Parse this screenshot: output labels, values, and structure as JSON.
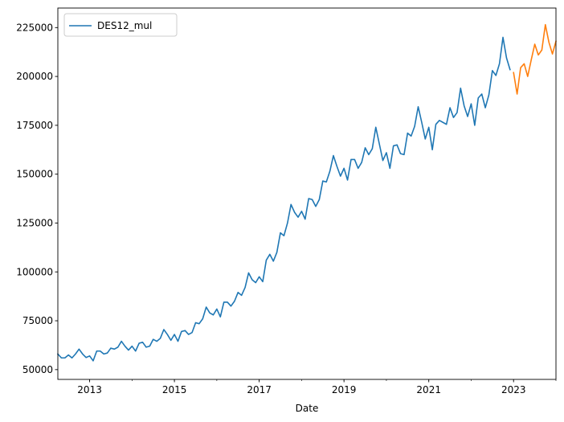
{
  "chart_data": {
    "type": "line",
    "title": "",
    "xlabel": "Date",
    "ylabel": "",
    "xlim": [
      "2012-04",
      "2024-01"
    ],
    "ylim": [
      45000,
      235000
    ],
    "grid": false,
    "legend_placement": "top-left",
    "x_ticks": [
      "2013",
      "2015",
      "2017",
      "2019",
      "2021",
      "2023"
    ],
    "y_ticks": [
      "50000",
      "75000",
      "100000",
      "125000",
      "150000",
      "175000",
      "200000",
      "225000"
    ],
    "series": [
      {
        "name": "DES12_mul",
        "color": "#1f77b4",
        "x": [
          "2012-04",
          "2012-05",
          "2012-06",
          "2012-07",
          "2012-08",
          "2012-09",
          "2012-10",
          "2012-11",
          "2012-12",
          "2013-01",
          "2013-02",
          "2013-03",
          "2013-04",
          "2013-05",
          "2013-06",
          "2013-07",
          "2013-08",
          "2013-09",
          "2013-10",
          "2013-11",
          "2013-12",
          "2014-01",
          "2014-02",
          "2014-03",
          "2014-04",
          "2014-05",
          "2014-06",
          "2014-07",
          "2014-08",
          "2014-09",
          "2014-10",
          "2014-11",
          "2014-12",
          "2015-01",
          "2015-02",
          "2015-03",
          "2015-04",
          "2015-05",
          "2015-06",
          "2015-07",
          "2015-08",
          "2015-09",
          "2015-10",
          "2015-11",
          "2015-12",
          "2016-01",
          "2016-02",
          "2016-03",
          "2016-04",
          "2016-05",
          "2016-06",
          "2016-07",
          "2016-08",
          "2016-09",
          "2016-10",
          "2016-11",
          "2016-12",
          "2017-01",
          "2017-02",
          "2017-03",
          "2017-04",
          "2017-05",
          "2017-06",
          "2017-07",
          "2017-08",
          "2017-09",
          "2017-10",
          "2017-11",
          "2017-12",
          "2018-01",
          "2018-02",
          "2018-03",
          "2018-04",
          "2018-05",
          "2018-06",
          "2018-07",
          "2018-08",
          "2018-09",
          "2018-10",
          "2018-11",
          "2018-12",
          "2019-01",
          "2019-02",
          "2019-03",
          "2019-04",
          "2019-05",
          "2019-06",
          "2019-07",
          "2019-08",
          "2019-09",
          "2019-10",
          "2019-11",
          "2019-12",
          "2020-01",
          "2020-02",
          "2020-03",
          "2020-04",
          "2020-05",
          "2020-06",
          "2020-07",
          "2020-08",
          "2020-09",
          "2020-10",
          "2020-11",
          "2020-12",
          "2021-01",
          "2021-02",
          "2021-03",
          "2021-04",
          "2021-05",
          "2021-06",
          "2021-07",
          "2021-08",
          "2021-09",
          "2021-10",
          "2021-11",
          "2021-12",
          "2022-01",
          "2022-02",
          "2022-03",
          "2022-04",
          "2022-05",
          "2022-06",
          "2022-07",
          "2022-08",
          "2022-09",
          "2022-10",
          "2022-11",
          "2022-12"
        ],
        "values": [
          58000,
          56000,
          56000,
          57500,
          56000,
          58000,
          60500,
          58000,
          56200,
          57000,
          54500,
          59500,
          59500,
          58000,
          58500,
          61000,
          60500,
          61500,
          64500,
          62000,
          60000,
          62000,
          59500,
          63500,
          64000,
          61500,
          62000,
          65500,
          64500,
          66000,
          70500,
          68000,
          65000,
          68000,
          64500,
          69500,
          70000,
          68000,
          69000,
          74000,
          73500,
          76000,
          82000,
          79000,
          78000,
          81000,
          77000,
          84500,
          84500,
          82500,
          85000,
          89500,
          88000,
          92000,
          99500,
          96000,
          94500,
          97500,
          95000,
          106000,
          109000,
          105500,
          110000,
          120000,
          118500,
          125000,
          134500,
          130500,
          128000,
          131000,
          127000,
          137500,
          137000,
          133500,
          137000,
          146500,
          146000,
          151500,
          159500,
          154000,
          149000,
          153000,
          147000,
          157500,
          157500,
          153000,
          156000,
          163500,
          160000,
          163000,
          174000,
          165500,
          157000,
          161000,
          153000,
          164500,
          165000,
          160500,
          160000,
          171000,
          169500,
          174500,
          184500,
          176500,
          168000,
          174000,
          162500,
          175500,
          177500,
          176500,
          175500,
          184000,
          179000,
          181500,
          194000,
          185000,
          179500,
          186000,
          175000,
          189000,
          191000,
          184000,
          190500,
          203000,
          200500,
          206500,
          220000,
          209500,
          203500
        ]
      },
      {
        "name": "",
        "color": "#ff7f0e",
        "x": [
          "2023-01",
          "2023-02",
          "2023-03",
          "2023-04",
          "2023-05",
          "2023-06",
          "2023-07",
          "2023-08",
          "2023-09",
          "2023-10",
          "2023-11",
          "2023-12",
          "2024-01"
        ],
        "values": [
          202000,
          191000,
          204500,
          206500,
          200000,
          208500,
          216500,
          211000,
          213500,
          226500,
          217500,
          211500,
          218000
        ]
      }
    ]
  }
}
